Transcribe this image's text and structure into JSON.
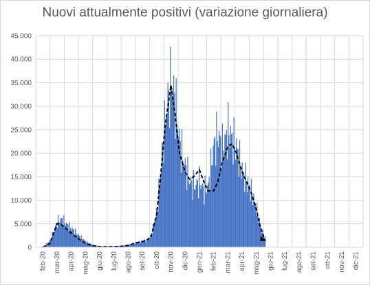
{
  "chart_data": {
    "type": "bar",
    "title": "Nuovi attualmente positivi (variazione giornaliera)",
    "xlabel": "",
    "ylabel": "",
    "ylim": [
      0,
      45000
    ],
    "yticks": [
      0,
      5000,
      10000,
      15000,
      20000,
      25000,
      30000,
      35000,
      40000,
      45000
    ],
    "ytick_labels": [
      "0",
      "5.000",
      "10.000",
      "15.000",
      "20.000",
      "25.000",
      "30.000",
      "35.000",
      "40.000",
      "45.000"
    ],
    "categories": [
      "feb-20",
      "mar-20",
      "apr-20",
      "mag-20",
      "giu-20",
      "lug-20",
      "ago-20",
      "set-20",
      "ott-20",
      "nov-20",
      "dic-20",
      "gen-21",
      "feb-21",
      "mar-21",
      "apr-21",
      "mag-21",
      "giu-21",
      "lug-21",
      "ago-21",
      "set-21",
      "ott-21",
      "nov-21",
      "dic-21"
    ],
    "grid": true,
    "bar_color": "#4472c4",
    "trend_color": "#000000",
    "series": [
      {
        "type": "bar",
        "x": [
          0,
          0.5,
          1,
          1.3,
          1.6,
          2,
          2.5,
          3,
          3.5,
          4,
          4.5,
          5,
          5.5,
          6,
          6.5,
          7,
          7.3,
          7.6,
          8,
          8.3,
          8.6,
          9,
          9.3,
          9.6,
          10,
          10.3,
          10.6,
          11,
          11.3,
          11.6,
          12,
          12.3,
          12.6,
          13,
          13.3,
          13.6,
          14,
          14.3,
          14.6,
          15,
          15.3,
          15.6
        ],
        "values": [
          0,
          1500,
          5500,
          6000,
          5000,
          4000,
          2500,
          1200,
          500,
          200,
          200,
          200,
          300,
          500,
          1000,
          1300,
          1500,
          2500,
          8000,
          18000,
          28000,
          36000,
          30000,
          22000,
          17000,
          14000,
          13000,
          14000,
          12000,
          13000,
          22000,
          24000,
          21000,
          25000,
          23000,
          21000,
          16000,
          14000,
          12000,
          8000,
          4000,
          2000
        ]
      },
      {
        "type": "line",
        "style": "dashed",
        "x": [
          0,
          0.5,
          1,
          1.3,
          1.6,
          2,
          2.5,
          3,
          3.5,
          4,
          4.5,
          5,
          5.5,
          6,
          6.5,
          7,
          7.3,
          7.6,
          8,
          8.3,
          8.6,
          9,
          9.3,
          9.6,
          10,
          10.3,
          10.6,
          11,
          11.3,
          11.6,
          12,
          12.3,
          12.6,
          13,
          13.3,
          13.6,
          14,
          14.3,
          14.6,
          15,
          15.3,
          15.6
        ],
        "values": [
          0,
          800,
          5000,
          4800,
          4000,
          3000,
          1800,
          800,
          300,
          100,
          100,
          100,
          200,
          400,
          900,
          1200,
          1500,
          2200,
          7000,
          16000,
          26000,
          34500,
          28000,
          20000,
          16000,
          14500,
          15000,
          16500,
          14000,
          12000,
          12000,
          14000,
          18000,
          21500,
          22000,
          20000,
          16000,
          14000,
          12000,
          8000,
          4000,
          1500
        ]
      }
    ]
  }
}
